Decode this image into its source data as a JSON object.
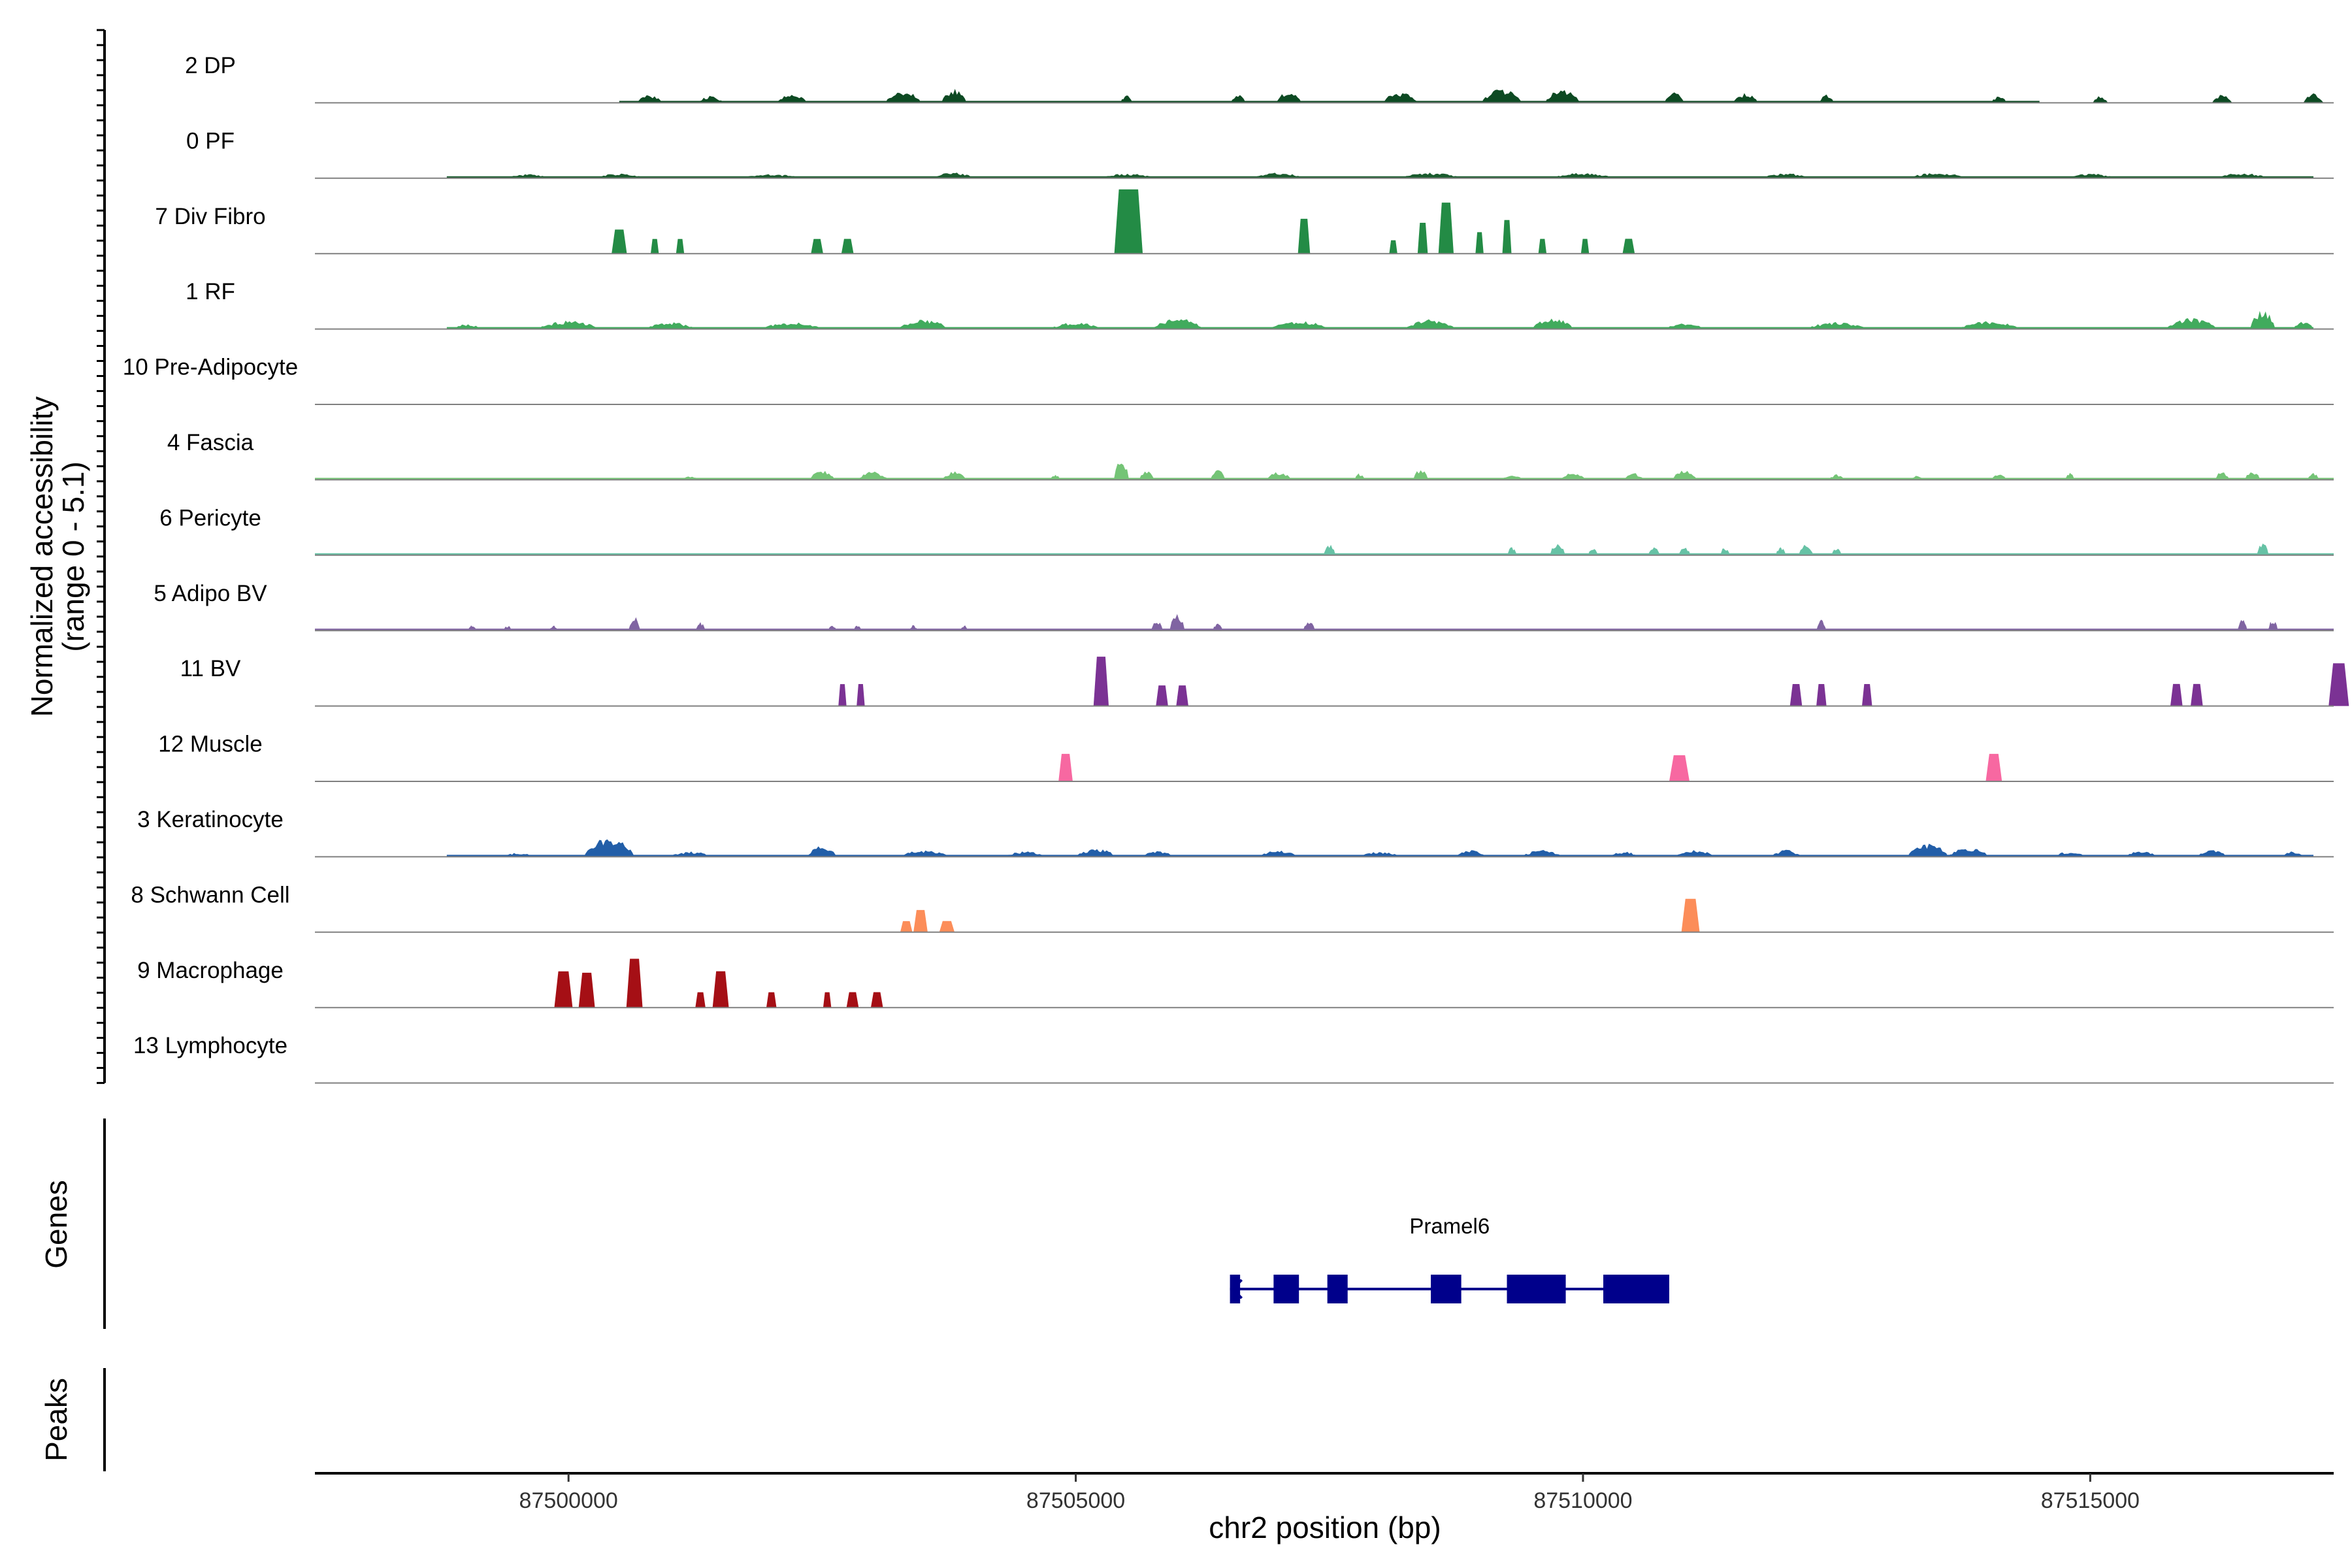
{
  "chart_data": {
    "type": "area",
    "title": "",
    "xlabel": "chr2 position (bp)",
    "ylabel_line1": "Normalized accessibility",
    "ylabel_line2": "(range 0 - 5.1)",
    "xlim": [
      87497500,
      87517400
    ],
    "ylim": [
      0,
      5.1
    ],
    "x_ticks": [
      87500000,
      87505000,
      87510000,
      87515000
    ],
    "x_tick_labels": [
      "87500000",
      "87505000",
      "87510000",
      "87515000"
    ],
    "grid": false,
    "section_labels": {
      "genes": "Genes",
      "peaks": "Peaks"
    },
    "series": [
      {
        "name": "2 DP",
        "color": "#0d4a23",
        "style": "fine",
        "range": [
          87500500,
          87514500
        ],
        "peaks": [
          [
            87500800,
            0.6,
            250
          ],
          [
            87501400,
            0.5,
            250
          ],
          [
            87502200,
            0.7,
            300
          ],
          [
            87503300,
            0.9,
            350
          ],
          [
            87503800,
            1.0,
            250
          ],
          [
            87505500,
            0.6,
            120
          ],
          [
            87506600,
            0.6,
            150
          ],
          [
            87507100,
            0.9,
            250
          ],
          [
            87508200,
            0.8,
            350
          ],
          [
            87509200,
            1.0,
            400
          ],
          [
            87509800,
            1.0,
            350
          ],
          [
            87510900,
            0.8,
            200
          ],
          [
            87511600,
            0.7,
            250
          ],
          [
            87512400,
            0.6,
            150
          ],
          [
            87514100,
            0.5,
            150
          ],
          [
            87515100,
            0.5,
            150
          ],
          [
            87516300,
            0.6,
            200
          ],
          [
            87517200,
            0.7,
            200
          ]
        ]
      },
      {
        "name": "0 PF",
        "color": "#1a5c2e",
        "style": "fine",
        "range": [
          87498800,
          87517200
        ],
        "peaks": [
          [
            87499600,
            0.3,
            400
          ],
          [
            87500500,
            0.35,
            500
          ],
          [
            87502000,
            0.3,
            600
          ],
          [
            87503800,
            0.45,
            400
          ],
          [
            87505500,
            0.35,
            600
          ],
          [
            87507000,
            0.4,
            500
          ],
          [
            87508500,
            0.4,
            600
          ],
          [
            87510000,
            0.4,
            600
          ],
          [
            87512000,
            0.35,
            500
          ],
          [
            87513500,
            0.4,
            600
          ],
          [
            87515000,
            0.35,
            500
          ],
          [
            87516500,
            0.4,
            500
          ]
        ]
      },
      {
        "name": "7 Div Fibro",
        "color": "#238b45",
        "style": "blocky",
        "range": [
          87497500,
          87517400
        ],
        "peaks": [
          [
            87500500,
            1.8,
            150
          ],
          [
            87500850,
            1.1,
            80
          ],
          [
            87501100,
            1.1,
            80
          ],
          [
            87502450,
            1.1,
            120
          ],
          [
            87502750,
            1.1,
            120
          ],
          [
            87505520,
            4.8,
            280
          ],
          [
            87507250,
            2.6,
            120
          ],
          [
            87508130,
            1.0,
            80
          ],
          [
            87508420,
            2.3,
            100
          ],
          [
            87508650,
            3.8,
            150
          ],
          [
            87508980,
            1.6,
            80
          ],
          [
            87509250,
            2.5,
            90
          ],
          [
            87509600,
            1.1,
            80
          ],
          [
            87510020,
            1.1,
            80
          ],
          [
            87510450,
            1.1,
            120
          ]
        ]
      },
      {
        "name": "1 RF",
        "color": "#41ab5d",
        "style": "fine",
        "range": [
          87498800,
          87517200
        ],
        "peaks": [
          [
            87499000,
            0.4,
            250
          ],
          [
            87500000,
            0.6,
            600
          ],
          [
            87501000,
            0.5,
            500
          ],
          [
            87502200,
            0.5,
            600
          ],
          [
            87503500,
            0.7,
            500
          ],
          [
            87505000,
            0.5,
            500
          ],
          [
            87506000,
            0.8,
            500
          ],
          [
            87507200,
            0.6,
            600
          ],
          [
            87508500,
            0.7,
            500
          ],
          [
            87509700,
            0.9,
            400
          ],
          [
            87511000,
            0.4,
            400
          ],
          [
            87512500,
            0.5,
            600
          ],
          [
            87514000,
            0.6,
            600
          ],
          [
            87516000,
            0.8,
            500
          ],
          [
            87516700,
            1.4,
            250
          ],
          [
            87517100,
            0.6,
            200
          ]
        ]
      },
      {
        "name": "10 Pre-Adipocyte",
        "color": "#74c476",
        "style": "fine",
        "range": [
          87497500,
          87517400
        ],
        "peaks": []
      },
      {
        "name": "4 Fascia",
        "color": "#74c476",
        "style": "fine",
        "range": [
          87497500,
          87517400
        ],
        "peaks": [
          [
            87501200,
            0.3,
            150
          ],
          [
            87502500,
            0.7,
            250
          ],
          [
            87503000,
            0.6,
            300
          ],
          [
            87503800,
            0.6,
            250
          ],
          [
            87504800,
            0.4,
            100
          ],
          [
            87505450,
            1.6,
            150
          ],
          [
            87505700,
            0.8,
            150
          ],
          [
            87506400,
            0.8,
            150
          ],
          [
            87507000,
            0.6,
            250
          ],
          [
            87507800,
            0.5,
            100
          ],
          [
            87508400,
            0.8,
            150
          ],
          [
            87509300,
            0.4,
            200
          ],
          [
            87509900,
            0.5,
            250
          ],
          [
            87510500,
            0.5,
            200
          ],
          [
            87511000,
            0.7,
            250
          ],
          [
            87512500,
            0.4,
            150
          ],
          [
            87513300,
            0.3,
            150
          ],
          [
            87514100,
            0.5,
            150
          ],
          [
            87514800,
            0.5,
            100
          ],
          [
            87516300,
            0.6,
            150
          ],
          [
            87516600,
            0.7,
            150
          ],
          [
            87517200,
            0.5,
            120
          ]
        ]
      },
      {
        "name": "6 Pericyte",
        "color": "#66c2a5",
        "style": "fine",
        "range": [
          87497500,
          87517400
        ],
        "peaks": [
          [
            87507500,
            0.8,
            120
          ],
          [
            87509300,
            0.6,
            100
          ],
          [
            87509750,
            1.0,
            150
          ],
          [
            87510100,
            0.6,
            100
          ],
          [
            87510700,
            0.6,
            120
          ],
          [
            87511000,
            0.6,
            120
          ],
          [
            87511400,
            0.6,
            100
          ],
          [
            87511950,
            0.6,
            100
          ],
          [
            87512200,
            0.8,
            150
          ],
          [
            87512500,
            0.6,
            100
          ],
          [
            87516700,
            0.9,
            120
          ]
        ]
      },
      {
        "name": "5 Adipo BV",
        "color": "#8064a2",
        "style": "fine",
        "range": [
          87497500,
          87517400
        ],
        "peaks": [
          [
            87499050,
            0.4,
            80
          ],
          [
            87499400,
            0.4,
            80
          ],
          [
            87499850,
            0.4,
            80
          ],
          [
            87500650,
            1.0,
            120
          ],
          [
            87501300,
            0.6,
            100
          ],
          [
            87502600,
            0.4,
            80
          ],
          [
            87502850,
            0.4,
            80
          ],
          [
            87503400,
            0.4,
            80
          ],
          [
            87503900,
            0.4,
            80
          ],
          [
            87505800,
            0.8,
            120
          ],
          [
            87506000,
            1.2,
            150
          ],
          [
            87506400,
            0.6,
            100
          ],
          [
            87507300,
            0.7,
            120
          ],
          [
            87512350,
            0.8,
            100
          ],
          [
            87516500,
            0.8,
            100
          ],
          [
            87516800,
            0.8,
            100
          ]
        ]
      },
      {
        "name": "11 BV",
        "color": "#7b3294",
        "style": "blocky",
        "range": [
          87497500,
          87517400
        ],
        "peaks": [
          [
            87502700,
            1.6,
            80
          ],
          [
            87502880,
            1.6,
            80
          ],
          [
            87505250,
            3.6,
            150
          ],
          [
            87505850,
            1.5,
            120
          ],
          [
            87506050,
            1.5,
            120
          ],
          [
            87512100,
            1.6,
            120
          ],
          [
            87512350,
            1.6,
            100
          ],
          [
            87512800,
            1.6,
            100
          ],
          [
            87515850,
            1.6,
            120
          ],
          [
            87516050,
            1.6,
            120
          ],
          [
            87517450,
            3.1,
            200
          ]
        ]
      },
      {
        "name": "12 Muscle",
        "color": "#f768a1",
        "style": "blocky",
        "range": [
          87497500,
          87517400
        ],
        "peaks": [
          [
            87504900,
            2.0,
            140
          ],
          [
            87510950,
            1.9,
            200
          ],
          [
            87514050,
            2.0,
            160
          ]
        ]
      },
      {
        "name": "3 Keratinocyte",
        "color": "#225ea8",
        "style": "fine",
        "range": [
          87498800,
          87517200
        ],
        "peaks": [
          [
            87499500,
            0.3,
            300
          ],
          [
            87500400,
            1.4,
            500
          ],
          [
            87501200,
            0.4,
            400
          ],
          [
            87502500,
            0.8,
            300
          ],
          [
            87503500,
            0.5,
            500
          ],
          [
            87504500,
            0.4,
            400
          ],
          [
            87505200,
            0.6,
            400
          ],
          [
            87505800,
            0.5,
            300
          ],
          [
            87507000,
            0.5,
            400
          ],
          [
            87508000,
            0.4,
            400
          ],
          [
            87508900,
            0.5,
            300
          ],
          [
            87509600,
            0.5,
            400
          ],
          [
            87510400,
            0.4,
            300
          ],
          [
            87511100,
            0.5,
            400
          ],
          [
            87512000,
            0.5,
            300
          ],
          [
            87513400,
            1.0,
            400
          ],
          [
            87513800,
            0.7,
            400
          ],
          [
            87514800,
            0.4,
            300
          ],
          [
            87515500,
            0.5,
            300
          ],
          [
            87516200,
            0.5,
            300
          ],
          [
            87517000,
            0.4,
            200
          ]
        ]
      },
      {
        "name": "8 Schwann Cell",
        "color": "#fc8d59",
        "style": "blocky",
        "range": [
          87497500,
          87517400
        ],
        "peaks": [
          [
            87503330,
            0.8,
            120
          ],
          [
            87503470,
            1.6,
            140
          ],
          [
            87503730,
            0.8,
            150
          ],
          [
            87511060,
            2.4,
            180
          ]
        ]
      },
      {
        "name": "9 Macrophage",
        "color": "#a50f15",
        "style": "blocky",
        "range": [
          87497500,
          87517400
        ],
        "peaks": [
          [
            87499950,
            2.6,
            180
          ],
          [
            87500180,
            2.5,
            160
          ],
          [
            87500650,
            3.5,
            160
          ],
          [
            87501300,
            1.1,
            100
          ],
          [
            87501500,
            2.6,
            160
          ],
          [
            87502000,
            1.1,
            100
          ],
          [
            87502550,
            1.1,
            80
          ],
          [
            87502800,
            1.1,
            120
          ],
          [
            87503040,
            1.1,
            120
          ]
        ]
      },
      {
        "name": "13 Lymphocyte",
        "color": "#888888",
        "style": "fine",
        "range": [
          87497500,
          87517400
        ],
        "peaks": []
      }
    ],
    "gene": {
      "name": "Pramel6",
      "strand": "-",
      "start": 87506520,
      "end": 87510850,
      "exons": [
        [
          87506520,
          87506620
        ],
        [
          87506950,
          87507200
        ],
        [
          87507480,
          87507680
        ],
        [
          87508500,
          87508800
        ],
        [
          87509250,
          87509830
        ],
        [
          87510200,
          87510850
        ]
      ]
    },
    "colors": {
      "axis": "#000000",
      "baseline": "#808080",
      "gene": "#00008b"
    }
  }
}
